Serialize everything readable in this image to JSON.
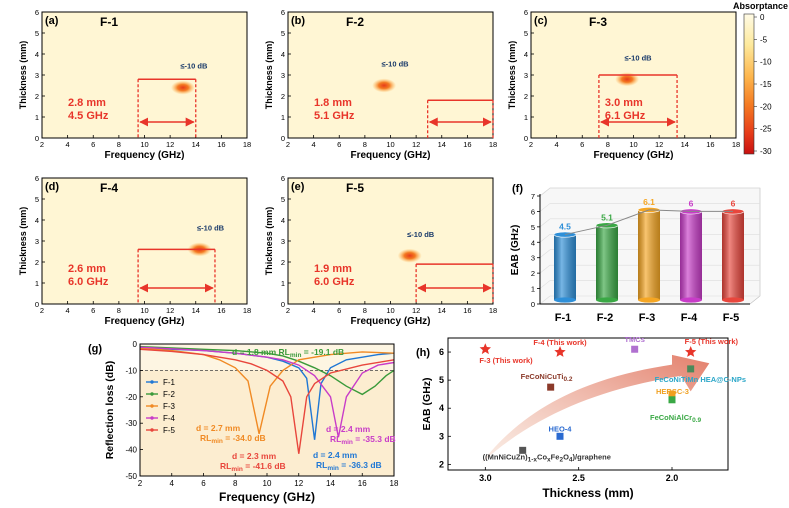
{
  "colorbar": {
    "title": "Absorptance",
    "ticks": [
      "0",
      "-5",
      "-10",
      "-15",
      "-20",
      "-25",
      "-30"
    ],
    "colors": [
      "#fffbe6",
      "#fde99c",
      "#fdb54c",
      "#f47a22",
      "#e63c1a",
      "#c81010"
    ]
  },
  "heatmaps": [
    {
      "panel": "(a)",
      "name": "F-1",
      "contour_label": "≤-10 dB",
      "thickness": "2.8 mm",
      "bandwidth": "4.5 GHz",
      "band_start": 9.5,
      "band_end": 14.0,
      "band_thickness": 2.8,
      "hotspot_f": 13.0,
      "hotspot_t": 2.4
    },
    {
      "panel": "(b)",
      "name": "F-2",
      "contour_label": "≤-10 dB",
      "thickness": "1.8 mm",
      "bandwidth": "5.1 GHz",
      "band_start": 12.9,
      "band_end": 18.0,
      "band_thickness": 1.8,
      "hotspot_f": 9.5,
      "hotspot_t": 2.5
    },
    {
      "panel": "(c)",
      "name": "F-3",
      "contour_label": "≤-10 dB",
      "thickness": "3.0 mm",
      "bandwidth": "6.1 GHz",
      "band_start": 7.3,
      "band_end": 13.4,
      "band_thickness": 3.0,
      "hotspot_f": 9.5,
      "hotspot_t": 2.8
    },
    {
      "panel": "(d)",
      "name": "F-4",
      "contour_label": "≤-10 dB",
      "thickness": "2.6 mm",
      "bandwidth": "6.0 GHz",
      "band_start": 9.5,
      "band_end": 15.5,
      "band_thickness": 2.6,
      "hotspot_f": 14.3,
      "hotspot_t": 2.6
    },
    {
      "panel": "(e)",
      "name": "F-5",
      "contour_label": "≤-10 dB",
      "thickness": "1.9 mm",
      "bandwidth": "6.0 GHz",
      "band_start": 12.0,
      "band_end": 18.0,
      "band_thickness": 1.9,
      "hotspot_f": 11.5,
      "hotspot_t": 2.3
    }
  ],
  "heatmap_axes": {
    "xlabel": "Frequency (GHz)",
    "ylabel": "Thickness (mm)",
    "xticks": [
      "2",
      "4",
      "6",
      "8",
      "10",
      "12",
      "14",
      "16",
      "18"
    ],
    "yticks": [
      "0",
      "1",
      "2",
      "3",
      "4",
      "5",
      "6"
    ],
    "xlim": [
      2,
      18
    ],
    "ylim": [
      0,
      6
    ]
  },
  "chart_data": [
    {
      "panel": "(f)",
      "type": "bar",
      "categories": [
        "F-1",
        "F-2",
        "F-3",
        "F-4",
        "F-5"
      ],
      "values": [
        4.5,
        5.1,
        6.1,
        6,
        6
      ],
      "value_labels": [
        "4.5",
        "5.1",
        "6.1",
        "6",
        "6"
      ],
      "colors": [
        "#2e8fd8",
        "#3aa845",
        "#f5a623",
        "#c83cc8",
        "#e8463c"
      ],
      "ylabel": "EAB (GHz)",
      "yticks": [
        "0",
        "1",
        "2",
        "3",
        "4",
        "5",
        "6",
        "7"
      ],
      "ylim": [
        0,
        7
      ]
    },
    {
      "panel": "(g)",
      "type": "line",
      "xlabel": "Frequency (GHz)",
      "ylabel": "Reflection loss (dB)",
      "xticks": [
        "2",
        "4",
        "6",
        "8",
        "10",
        "12",
        "14",
        "16",
        "18"
      ],
      "yticks": [
        "0",
        "-10",
        "-20",
        "-30",
        "-40",
        "-50"
      ],
      "xlim": [
        2,
        18
      ],
      "ylim": [
        -50,
        0
      ],
      "legend_position": "left",
      "series": [
        {
          "name": "F-1",
          "color": "#1f77d4",
          "points": [
            [
              2,
              -1.5
            ],
            [
              4,
              -2
            ],
            [
              6,
              -2.5
            ],
            [
              8,
              -3.5
            ],
            [
              10,
              -5
            ],
            [
              11,
              -6.5
            ],
            [
              12,
              -9
            ],
            [
              12.5,
              -13
            ],
            [
              13,
              -36.3
            ],
            [
              13.4,
              -15
            ],
            [
              14,
              -9
            ],
            [
              15,
              -6
            ],
            [
              16,
              -5
            ],
            [
              17,
              -4
            ],
            [
              18,
              -3.5
            ]
          ]
        },
        {
          "name": "F-2",
          "color": "#3a9a3a",
          "points": [
            [
              2,
              -1
            ],
            [
              4,
              -1.5
            ],
            [
              6,
              -2
            ],
            [
              8,
              -2.5
            ],
            [
              10,
              -3.5
            ],
            [
              11,
              -4.5
            ],
            [
              12,
              -6.5
            ],
            [
              13,
              -9
            ],
            [
              14,
              -12
            ],
            [
              15,
              -16
            ],
            [
              16,
              -19.1
            ],
            [
              16.8,
              -16
            ],
            [
              17.5,
              -12
            ],
            [
              18,
              -10
            ]
          ]
        },
        {
          "name": "F-3",
          "color": "#f08a24",
          "points": [
            [
              2,
              -1.5
            ],
            [
              4,
              -2.5
            ],
            [
              6,
              -4
            ],
            [
              7,
              -6
            ],
            [
              8,
              -9
            ],
            [
              8.8,
              -14
            ],
            [
              9.5,
              -34.0
            ],
            [
              10.2,
              -16
            ],
            [
              11,
              -10
            ],
            [
              12,
              -6
            ],
            [
              14,
              -4
            ],
            [
              16,
              -3
            ],
            [
              18,
              -3.5
            ]
          ]
        },
        {
          "name": "F-4",
          "color": "#c83cc8",
          "points": [
            [
              2,
              -1.2
            ],
            [
              4,
              -1.8
            ],
            [
              6,
              -2.5
            ],
            [
              8,
              -3.5
            ],
            [
              10,
              -5
            ],
            [
              11,
              -6
            ],
            [
              12,
              -8
            ],
            [
              13,
              -12
            ],
            [
              14,
              -20
            ],
            [
              14.5,
              -35.3
            ],
            [
              15,
              -20
            ],
            [
              16,
              -11
            ],
            [
              17,
              -8
            ],
            [
              18,
              -7
            ]
          ]
        },
        {
          "name": "F-5",
          "color": "#e8463c",
          "points": [
            [
              2,
              -2
            ],
            [
              4,
              -2.8
            ],
            [
              6,
              -4
            ],
            [
              8,
              -6
            ],
            [
              9,
              -7.5
            ],
            [
              10,
              -10
            ],
            [
              11,
              -14
            ],
            [
              11.5,
              -20
            ],
            [
              12,
              -41.6
            ],
            [
              12.5,
              -20
            ],
            [
              13,
              -15
            ],
            [
              14,
              -11
            ],
            [
              16,
              -8
            ],
            [
              18,
              -6
            ]
          ]
        }
      ],
      "annotations": [
        {
          "text": "d = 1.8 mm RL",
          "sub": "min",
          "value": " = -19.1 dB",
          "color": "#3a9a3a"
        },
        {
          "text": "d = 2.7 mm",
          "color": "#f08a24"
        },
        {
          "text": "RL",
          "sub": "min",
          "value": " = -34.0 dB",
          "color": "#f08a24"
        },
        {
          "text": "d = 2.4 mm",
          "color": "#c83cc8"
        },
        {
          "text": "RL",
          "sub": "min",
          "value": " = -35.3 dB",
          "color": "#c83cc8"
        },
        {
          "text": "d = 2.3 mm",
          "color": "#e8463c"
        },
        {
          "text": "RL",
          "sub": "min",
          "value": " = -41.6 dB",
          "color": "#e8463c"
        },
        {
          "text": "d = 2.4 mm",
          "color": "#1f77d4"
        },
        {
          "text": "RL",
          "sub": "min",
          "value": " = -36.3 dB",
          "color": "#1f77d4"
        }
      ]
    },
    {
      "panel": "(h)",
      "type": "scatter",
      "xlabel": "Thickness (mm)",
      "ylabel": "EAB (GHz)",
      "xticks": [
        "3.0",
        "2.5",
        "2.0"
      ],
      "yticks": [
        "2",
        "3",
        "4",
        "5",
        "6"
      ],
      "xlim": [
        3.2,
        1.7
      ],
      "ylim": [
        1.8,
        6.5
      ],
      "x_reversed": true,
      "points": [
        {
          "label": "F-3 (This work)",
          "x": 3.0,
          "y": 6.1,
          "marker": "star",
          "color": "#e8352a",
          "label_color": "#e8352a"
        },
        {
          "label": "F-4 (This work)",
          "x": 2.6,
          "y": 6.0,
          "marker": "star",
          "color": "#e8352a",
          "label_color": "#e8352a"
        },
        {
          "label": "F-5 (This work)",
          "x": 1.9,
          "y": 6.0,
          "marker": "star",
          "color": "#e8352a",
          "label_color": "#e8352a"
        },
        {
          "label": "TMCs",
          "x": 2.2,
          "y": 6.1,
          "marker": "square",
          "color": "#b070d0",
          "label_color": "#b070d0"
        },
        {
          "label": "FeCoNiCuTi",
          "sub": "0.2",
          "x": 2.65,
          "y": 4.75,
          "marker": "square",
          "color": "#8b3a2a",
          "label_color": "#8b3a2a"
        },
        {
          "label": "FeCoNiTiMn HEA@C-NPs",
          "x": 1.9,
          "y": 5.4,
          "marker": "square",
          "color": "#4a8a5a",
          "label_color": "#2aa6c8"
        },
        {
          "label": "HERSC-3",
          "x": 2.0,
          "y": 4.5,
          "marker": "square",
          "color": "#f0a020",
          "label_color": "#f0a020"
        },
        {
          "label": "FeCoNiAlCr",
          "sub": "0.9",
          "x": 2.0,
          "y": 4.3,
          "marker": "square",
          "color": "#3aa845",
          "label_color": "#3aa845"
        },
        {
          "label": "HEO-4",
          "x": 2.6,
          "y": 3.0,
          "marker": "square",
          "color": "#2a6ad0",
          "label_color": "#2a6ad0"
        },
        {
          "label": "((MnNiCuZn)",
          "sub": "1-x",
          "tail": "Co",
          "sub2": "x",
          "tail2": "Fe",
          "sub3": "2",
          "tail3": "O",
          "sub4": "4",
          "tail4": ")/graphene",
          "x": 2.8,
          "y": 2.5,
          "marker": "square",
          "color": "#555555",
          "label_color": "#333333"
        }
      ]
    }
  ]
}
